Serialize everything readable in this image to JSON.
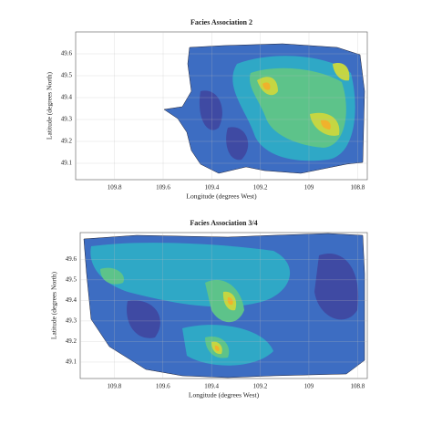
{
  "chart_data": [
    {
      "type": "contour",
      "title": "Facies Association 2",
      "xlabel": "Longitude (degrees West)",
      "ylabel": "Latitude (degrees North)",
      "xlim": [
        109.96,
        108.76
      ],
      "ylim": [
        49.025,
        49.7
      ],
      "xticks": [
        109.8,
        109.6,
        109.4,
        109.2,
        109,
        108.8
      ],
      "yticks": [
        49.1,
        49.2,
        49.3,
        49.4,
        49.5,
        49.6
      ],
      "grid": true
    },
    {
      "type": "contour",
      "title": "Facies Association 3/4",
      "xlabel": "Longitude (degrees West)",
      "ylabel": "Latitude (degrees North)",
      "xlim": [
        109.94,
        108.76
      ],
      "ylim": [
        49.02,
        49.73
      ],
      "xticks": [
        109.8,
        109.6,
        109.4,
        109.2,
        109,
        108.8
      ],
      "yticks": [
        49.1,
        49.2,
        49.3,
        49.4,
        49.5,
        49.6
      ],
      "grid": true
    }
  ]
}
